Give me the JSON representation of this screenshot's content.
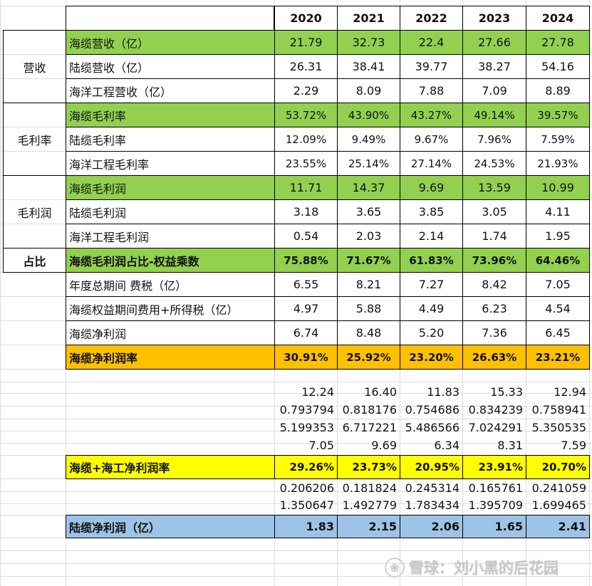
{
  "years": [
    "2020",
    "2021",
    "2022",
    "2023",
    "2024"
  ],
  "groups": {
    "revenue": "营收",
    "gross_margin": "毛利率",
    "gross_profit": "毛利润",
    "share": "占比"
  },
  "rows": {
    "r1": {
      "label": "海缆营收（亿）",
      "values": [
        "21.79",
        "32.73",
        "22.4",
        "27.66",
        "27.78"
      ]
    },
    "r2": {
      "label": "陆缆营收（亿）",
      "values": [
        "26.31",
        "38.41",
        "39.77",
        "38.27",
        "54.16"
      ]
    },
    "r3": {
      "label": "海洋工程营收（亿）",
      "values": [
        "2.29",
        "8.09",
        "7.88",
        "7.09",
        "8.89"
      ]
    },
    "r4": {
      "label": "海缆毛利率",
      "values": [
        "53.72%",
        "43.90%",
        "43.27%",
        "49.14%",
        "39.57%"
      ]
    },
    "r5": {
      "label": "陆缆毛利率",
      "values": [
        "12.09%",
        "9.49%",
        "9.67%",
        "7.96%",
        "7.59%"
      ]
    },
    "r6": {
      "label": "海洋工程毛利率",
      "values": [
        "23.55%",
        "25.14%",
        "27.14%",
        "24.53%",
        "21.93%"
      ]
    },
    "r7": {
      "label": "海缆毛利润",
      "values": [
        "11.71",
        "14.37",
        "9.69",
        "13.59",
        "10.99"
      ]
    },
    "r8": {
      "label": "陆缆毛利润",
      "values": [
        "3.18",
        "3.65",
        "3.85",
        "3.05",
        "4.11"
      ]
    },
    "r9": {
      "label": "海洋工程毛利润",
      "values": [
        "0.54",
        "2.03",
        "2.14",
        "1.74",
        "1.95"
      ]
    },
    "r10": {
      "label": "海缆毛利润占比-权益乘数",
      "values": [
        "75.88%",
        "71.67%",
        "61.83%",
        "73.96%",
        "64.46%"
      ]
    },
    "r11": {
      "label": "年度总期间 费税（亿）",
      "values": [
        "6.55",
        "8.21",
        "7.27",
        "8.42",
        "7.05"
      ]
    },
    "r12": {
      "label": "海缆权益期间费用+所得税（亿）",
      "values": [
        "4.97",
        "5.88",
        "4.49",
        "6.23",
        "4.54"
      ]
    },
    "r13": {
      "label": "海缆净利润",
      "values": [
        "6.74",
        "8.48",
        "5.20",
        "7.36",
        "6.45"
      ]
    },
    "r14": {
      "label": "海缆净利润率",
      "values": [
        "30.91%",
        "25.92%",
        "23.20%",
        "26.63%",
        "23.21%"
      ]
    },
    "r15": {
      "values": [
        "12.24",
        "16.40",
        "11.83",
        "15.33",
        "12.94"
      ]
    },
    "r16": {
      "values": [
        "0.793794",
        "0.818176",
        "0.754686",
        "0.834239",
        "0.758941"
      ]
    },
    "r17": {
      "values": [
        "5.199353",
        "6.717221",
        "5.486566",
        "7.024291",
        "5.350535"
      ]
    },
    "r18": {
      "values": [
        "7.05",
        "9.69",
        "6.34",
        "8.31",
        "7.59"
      ]
    },
    "r19": {
      "label": "海缆+海工净利润率",
      "values": [
        "29.26%",
        "23.73%",
        "20.95%",
        "23.91%",
        "20.70%"
      ]
    },
    "r20": {
      "values": [
        "0.206206",
        "0.181824",
        "0.245314",
        "0.165761",
        "0.241059"
      ]
    },
    "r21": {
      "values": [
        "1.350647",
        "1.492779",
        "1.783434",
        "1.395709",
        "1.699465"
      ]
    },
    "r22": {
      "label": "陆缆净利润（亿）",
      "values": [
        "1.83",
        "2.15",
        "2.06",
        "1.65",
        "2.41"
      ]
    }
  },
  "watermark": {
    "icon": "xueqiu-logo-icon",
    "text": "雪球：刘小黑的后花园"
  }
}
